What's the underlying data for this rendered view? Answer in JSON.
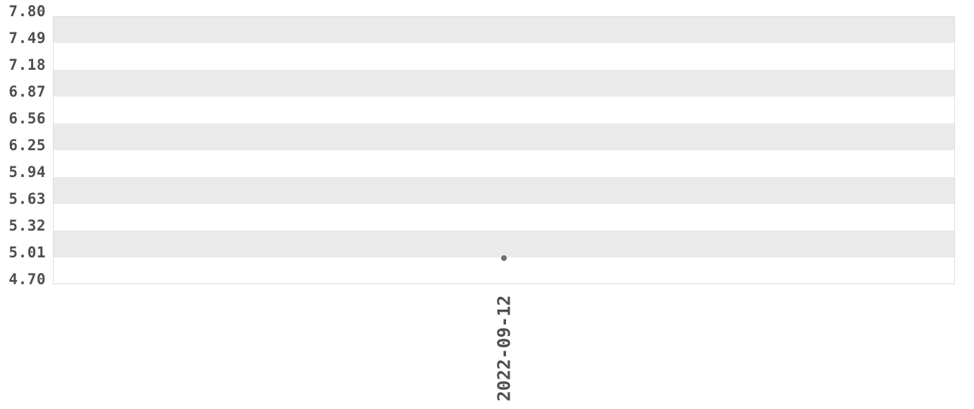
{
  "chart_data": {
    "type": "scatter",
    "title": "",
    "xlabel": "",
    "ylabel": "",
    "points": [
      {
        "x": "2022-09-12",
        "y": 5.0
      }
    ],
    "xticks": [
      "2022-09-12"
    ],
    "yticks": [
      "7.80",
      "7.49",
      "7.18",
      "6.87",
      "6.56",
      "6.25",
      "5.94",
      "5.63",
      "5.32",
      "5.01",
      "4.70"
    ],
    "ylim": [
      4.7,
      7.8
    ],
    "grid": "alternating horizontal bands",
    "legend_position": "none"
  },
  "colors": {
    "background": "#ffffff",
    "band_gray": "#eaeaea",
    "band_white": "#ffffff",
    "plot_border": "#dcdcdc",
    "tick_label": "#4f4f4f",
    "point": "#6e6e6e"
  }
}
